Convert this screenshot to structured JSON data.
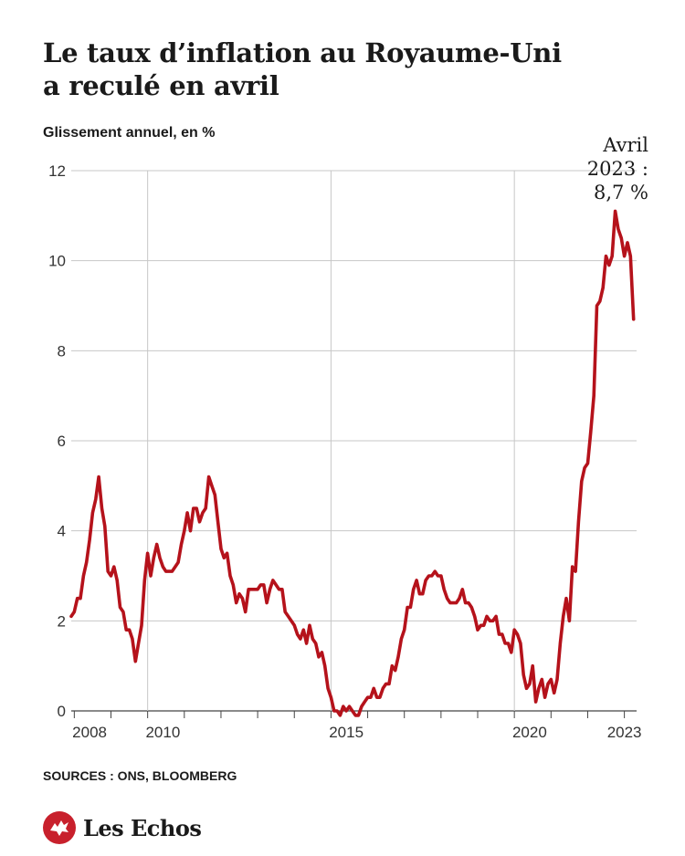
{
  "title": {
    "line1": "Le taux d’inflation au Royaume-Uni",
    "line2": "a reculé en avril"
  },
  "subtitle": "Glissement annuel, en %",
  "source": "SOURCES : ONS, BLOOMBERG",
  "brand": {
    "name": "Les Echos",
    "color": "#c8202c"
  },
  "chart_data": {
    "type": "line",
    "title": "Le taux d’inflation au Royaume-Uni a reculé en avril",
    "ylabel": "Glissement annuel, en %",
    "xlabel": "",
    "ylim": [
      0,
      12
    ],
    "yticks": [
      0,
      2,
      4,
      6,
      8,
      10,
      12
    ],
    "xlim": [
      "2007-12",
      "2023-05"
    ],
    "xticks": [
      {
        "date": "2008-06",
        "label": "2008"
      },
      {
        "date": "2010-06",
        "label": "2010"
      },
      {
        "date": "2015-06",
        "label": "2015"
      },
      {
        "date": "2020-06",
        "label": "2020"
      },
      {
        "date": "2023-01",
        "label": "2023"
      }
    ],
    "grid": true,
    "line_color": "#b5121b",
    "annotation": {
      "lines": [
        "Avril",
        "2023 :",
        "8,7 %"
      ],
      "date": "2023-04",
      "value": 8.7
    },
    "series": [
      {
        "points": [
          [
            "2007-12",
            2.1
          ],
          [
            "2008-01",
            2.2
          ],
          [
            "2008-02",
            2.5
          ],
          [
            "2008-03",
            2.5
          ],
          [
            "2008-04",
            3.0
          ],
          [
            "2008-05",
            3.3
          ],
          [
            "2008-06",
            3.8
          ],
          [
            "2008-07",
            4.4
          ],
          [
            "2008-08",
            4.7
          ],
          [
            "2008-09",
            5.2
          ],
          [
            "2008-10",
            4.5
          ],
          [
            "2008-11",
            4.1
          ],
          [
            "2008-12",
            3.1
          ],
          [
            "2009-01",
            3.0
          ],
          [
            "2009-02",
            3.2
          ],
          [
            "2009-03",
            2.9
          ],
          [
            "2009-04",
            2.3
          ],
          [
            "2009-05",
            2.2
          ],
          [
            "2009-06",
            1.8
          ],
          [
            "2009-07",
            1.8
          ],
          [
            "2009-08",
            1.6
          ],
          [
            "2009-09",
            1.1
          ],
          [
            "2009-10",
            1.5
          ],
          [
            "2009-11",
            1.9
          ],
          [
            "2009-12",
            2.9
          ],
          [
            "2010-01",
            3.5
          ],
          [
            "2010-02",
            3.0
          ],
          [
            "2010-03",
            3.4
          ],
          [
            "2010-04",
            3.7
          ],
          [
            "2010-05",
            3.4
          ],
          [
            "2010-06",
            3.2
          ],
          [
            "2010-07",
            3.1
          ],
          [
            "2010-08",
            3.1
          ],
          [
            "2010-09",
            3.1
          ],
          [
            "2010-10",
            3.2
          ],
          [
            "2010-11",
            3.3
          ],
          [
            "2010-12",
            3.7
          ],
          [
            "2011-01",
            4.0
          ],
          [
            "2011-02",
            4.4
          ],
          [
            "2011-03",
            4.0
          ],
          [
            "2011-04",
            4.5
          ],
          [
            "2011-05",
            4.5
          ],
          [
            "2011-06",
            4.2
          ],
          [
            "2011-07",
            4.4
          ],
          [
            "2011-08",
            4.5
          ],
          [
            "2011-09",
            5.2
          ],
          [
            "2011-10",
            5.0
          ],
          [
            "2011-11",
            4.8
          ],
          [
            "2011-12",
            4.2
          ],
          [
            "2012-01",
            3.6
          ],
          [
            "2012-02",
            3.4
          ],
          [
            "2012-03",
            3.5
          ],
          [
            "2012-04",
            3.0
          ],
          [
            "2012-05",
            2.8
          ],
          [
            "2012-06",
            2.4
          ],
          [
            "2012-07",
            2.6
          ],
          [
            "2012-08",
            2.5
          ],
          [
            "2012-09",
            2.2
          ],
          [
            "2012-10",
            2.7
          ],
          [
            "2012-11",
            2.7
          ],
          [
            "2012-12",
            2.7
          ],
          [
            "2013-01",
            2.7
          ],
          [
            "2013-02",
            2.8
          ],
          [
            "2013-03",
            2.8
          ],
          [
            "2013-04",
            2.4
          ],
          [
            "2013-05",
            2.7
          ],
          [
            "2013-06",
            2.9
          ],
          [
            "2013-07",
            2.8
          ],
          [
            "2013-08",
            2.7
          ],
          [
            "2013-09",
            2.7
          ],
          [
            "2013-10",
            2.2
          ],
          [
            "2013-11",
            2.1
          ],
          [
            "2013-12",
            2.0
          ],
          [
            "2014-01",
            1.9
          ],
          [
            "2014-02",
            1.7
          ],
          [
            "2014-03",
            1.6
          ],
          [
            "2014-04",
            1.8
          ],
          [
            "2014-05",
            1.5
          ],
          [
            "2014-06",
            1.9
          ],
          [
            "2014-07",
            1.6
          ],
          [
            "2014-08",
            1.5
          ],
          [
            "2014-09",
            1.2
          ],
          [
            "2014-10",
            1.3
          ],
          [
            "2014-11",
            1.0
          ],
          [
            "2014-12",
            0.5
          ],
          [
            "2015-01",
            0.3
          ],
          [
            "2015-02",
            0.0
          ],
          [
            "2015-03",
            0.0
          ],
          [
            "2015-04",
            -0.1
          ],
          [
            "2015-05",
            0.1
          ],
          [
            "2015-06",
            0.0
          ],
          [
            "2015-07",
            0.1
          ],
          [
            "2015-08",
            0.0
          ],
          [
            "2015-09",
            -0.1
          ],
          [
            "2015-10",
            -0.1
          ],
          [
            "2015-11",
            0.1
          ],
          [
            "2015-12",
            0.2
          ],
          [
            "2016-01",
            0.3
          ],
          [
            "2016-02",
            0.3
          ],
          [
            "2016-03",
            0.5
          ],
          [
            "2016-04",
            0.3
          ],
          [
            "2016-05",
            0.3
          ],
          [
            "2016-06",
            0.5
          ],
          [
            "2016-07",
            0.6
          ],
          [
            "2016-08",
            0.6
          ],
          [
            "2016-09",
            1.0
          ],
          [
            "2016-10",
            0.9
          ],
          [
            "2016-11",
            1.2
          ],
          [
            "2016-12",
            1.6
          ],
          [
            "2017-01",
            1.8
          ],
          [
            "2017-02",
            2.3
          ],
          [
            "2017-03",
            2.3
          ],
          [
            "2017-04",
            2.7
          ],
          [
            "2017-05",
            2.9
          ],
          [
            "2017-06",
            2.6
          ],
          [
            "2017-07",
            2.6
          ],
          [
            "2017-08",
            2.9
          ],
          [
            "2017-09",
            3.0
          ],
          [
            "2017-10",
            3.0
          ],
          [
            "2017-11",
            3.1
          ],
          [
            "2017-12",
            3.0
          ],
          [
            "2018-01",
            3.0
          ],
          [
            "2018-02",
            2.7
          ],
          [
            "2018-03",
            2.5
          ],
          [
            "2018-04",
            2.4
          ],
          [
            "2018-05",
            2.4
          ],
          [
            "2018-06",
            2.4
          ],
          [
            "2018-07",
            2.5
          ],
          [
            "2018-08",
            2.7
          ],
          [
            "2018-09",
            2.4
          ],
          [
            "2018-10",
            2.4
          ],
          [
            "2018-11",
            2.3
          ],
          [
            "2018-12",
            2.1
          ],
          [
            "2019-01",
            1.8
          ],
          [
            "2019-02",
            1.9
          ],
          [
            "2019-03",
            1.9
          ],
          [
            "2019-04",
            2.1
          ],
          [
            "2019-05",
            2.0
          ],
          [
            "2019-06",
            2.0
          ],
          [
            "2019-07",
            2.1
          ],
          [
            "2019-08",
            1.7
          ],
          [
            "2019-09",
            1.7
          ],
          [
            "2019-10",
            1.5
          ],
          [
            "2019-11",
            1.5
          ],
          [
            "2019-12",
            1.3
          ],
          [
            "2020-01",
            1.8
          ],
          [
            "2020-02",
            1.7
          ],
          [
            "2020-03",
            1.5
          ],
          [
            "2020-04",
            0.8
          ],
          [
            "2020-05",
            0.5
          ],
          [
            "2020-06",
            0.6
          ],
          [
            "2020-07",
            1.0
          ],
          [
            "2020-08",
            0.2
          ],
          [
            "2020-09",
            0.5
          ],
          [
            "2020-10",
            0.7
          ],
          [
            "2020-11",
            0.3
          ],
          [
            "2020-12",
            0.6
          ],
          [
            "2021-01",
            0.7
          ],
          [
            "2021-02",
            0.4
          ],
          [
            "2021-03",
            0.7
          ],
          [
            "2021-04",
            1.5
          ],
          [
            "2021-05",
            2.1
          ],
          [
            "2021-06",
            2.5
          ],
          [
            "2021-07",
            2.0
          ],
          [
            "2021-08",
            3.2
          ],
          [
            "2021-09",
            3.1
          ],
          [
            "2021-10",
            4.2
          ],
          [
            "2021-11",
            5.1
          ],
          [
            "2021-12",
            5.4
          ],
          [
            "2022-01",
            5.5
          ],
          [
            "2022-02",
            6.2
          ],
          [
            "2022-03",
            7.0
          ],
          [
            "2022-04",
            9.0
          ],
          [
            "2022-05",
            9.1
          ],
          [
            "2022-06",
            9.4
          ],
          [
            "2022-07",
            10.1
          ],
          [
            "2022-08",
            9.9
          ],
          [
            "2022-09",
            10.1
          ],
          [
            "2022-10",
            11.1
          ],
          [
            "2022-11",
            10.7
          ],
          [
            "2022-12",
            10.5
          ],
          [
            "2023-01",
            10.1
          ],
          [
            "2023-02",
            10.4
          ],
          [
            "2023-03",
            10.1
          ],
          [
            "2023-04",
            8.7
          ]
        ]
      }
    ]
  }
}
